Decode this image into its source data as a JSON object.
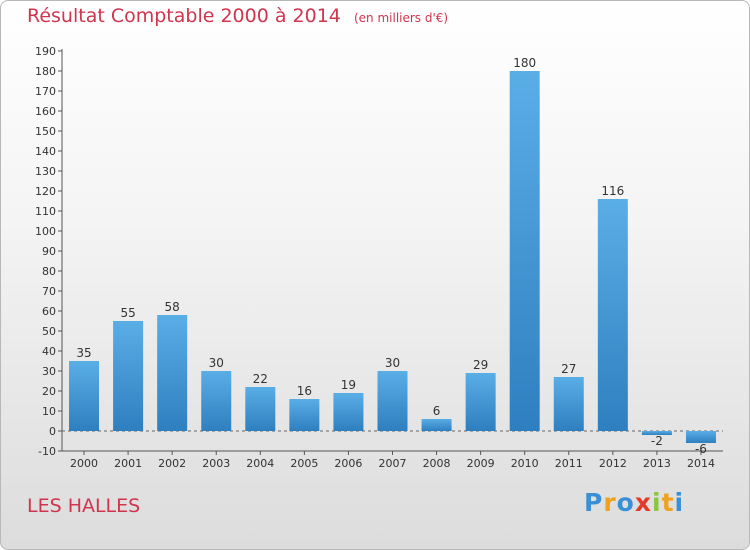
{
  "chart_data": {
    "type": "bar",
    "title": "Résultat Comptable 2000 à 2014",
    "subtitle": "(en milliers d'€)",
    "categories": [
      "2000",
      "2001",
      "2002",
      "2003",
      "2004",
      "2005",
      "2006",
      "2007",
      "2008",
      "2009",
      "2010",
      "2011",
      "2012",
      "2013",
      "2014"
    ],
    "values": [
      35,
      55,
      58,
      30,
      22,
      16,
      19,
      30,
      6,
      29,
      180,
      27,
      116,
      -2,
      -6
    ],
    "ylim": [
      -10,
      190
    ],
    "yticks": [
      -10,
      0,
      10,
      20,
      30,
      40,
      50,
      60,
      70,
      80,
      90,
      100,
      110,
      120,
      130,
      140,
      150,
      160,
      170,
      180,
      190
    ],
    "grid": false,
    "bar_color_light": "#5aaee6",
    "bar_color_dark": "#2e7fbf"
  },
  "commune": "LES HALLES",
  "logo": {
    "letters": [
      "P",
      "r",
      "o",
      "x",
      "i",
      "t",
      "i"
    ],
    "colors": [
      "#3a8fd6",
      "#f0a21e",
      "#3a8fd6",
      "#e23b2b",
      "#8cc63f",
      "#f0a21e",
      "#3a8fd6"
    ]
  }
}
